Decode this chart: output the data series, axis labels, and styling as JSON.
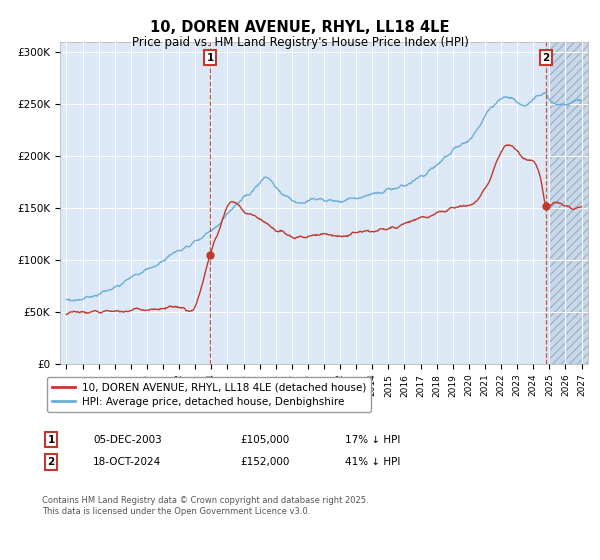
{
  "title": "10, DOREN AVENUE, RHYL, LL18 4LE",
  "subtitle": "Price paid vs. HM Land Registry's House Price Index (HPI)",
  "ylabel_ticks": [
    "£0",
    "£50K",
    "£100K",
    "£150K",
    "£200K",
    "£250K",
    "£300K"
  ],
  "ytick_values": [
    0,
    50000,
    100000,
    150000,
    200000,
    250000,
    300000
  ],
  "ylim": [
    0,
    310000
  ],
  "hpi_color": "#6baed6",
  "price_color": "#c0392b",
  "vline1_x": 2003.92,
  "vline2_x": 2024.79,
  "sale1_price_y": 105000,
  "sale2_price_y": 152000,
  "marker1_label": "1",
  "marker2_label": "2",
  "sale1_date": "05-DEC-2003",
  "sale1_price": "£105,000",
  "sale1_hpi": "17% ↓ HPI",
  "sale2_date": "18-OCT-2024",
  "sale2_price": "£152,000",
  "sale2_hpi": "41% ↓ HPI",
  "legend_line1": "10, DOREN AVENUE, RHYL, LL18 4LE (detached house)",
  "legend_line2": "HPI: Average price, detached house, Denbighshire",
  "footer": "Contains HM Land Registry data © Crown copyright and database right 2025.\nThis data is licensed under the Open Government Licence v3.0.",
  "bg_color": "#ffffff",
  "plot_bg_color": "#dce8f5",
  "grid_color": "#ffffff",
  "hatch_start": 2025.0,
  "xlim_left": 1994.6,
  "xlim_right": 2027.4
}
